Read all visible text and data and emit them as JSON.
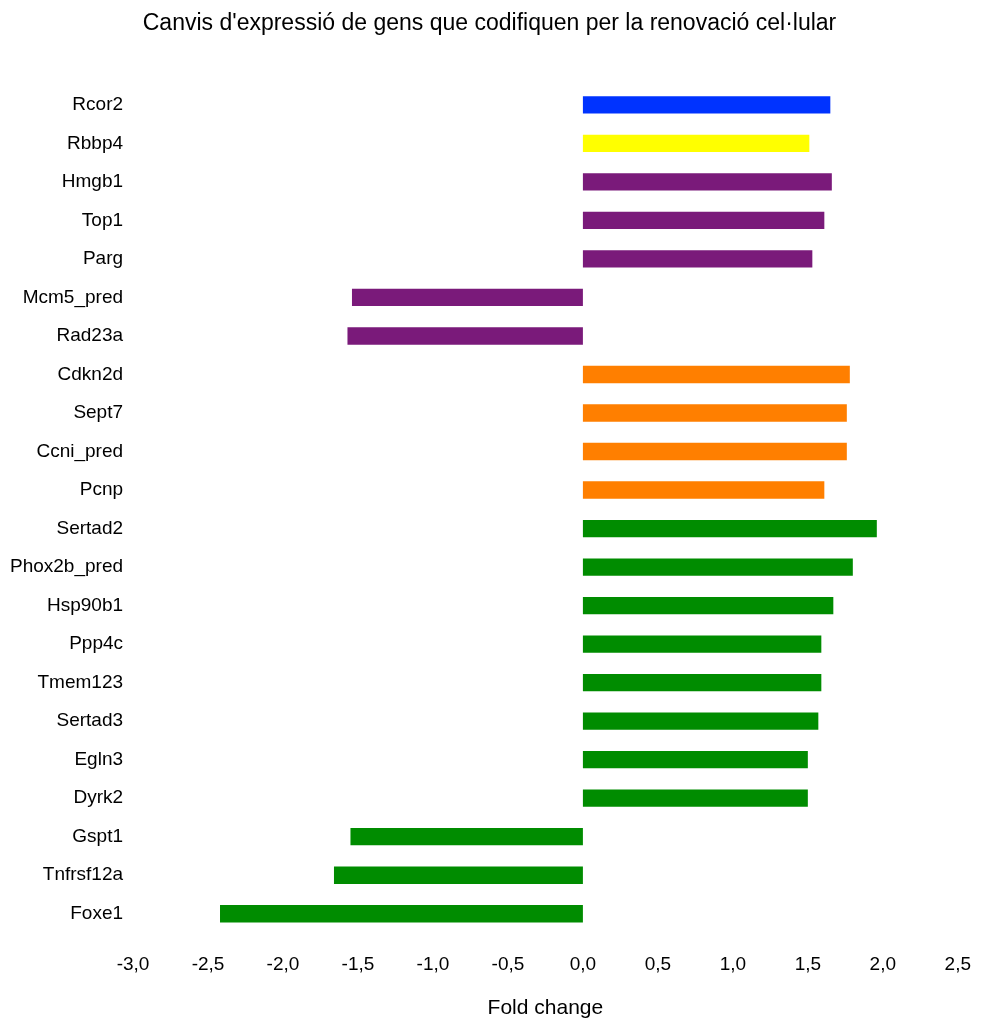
{
  "chart_data": {
    "type": "bar",
    "orientation": "horizontal",
    "title": "Canvis d'expressió de gens que codifiquen per la renovació cel·lular",
    "xlabel": "Fold change",
    "categories": [
      "Rcor2",
      "Rbbp4",
      "Hmgb1",
      "Top1",
      "Parg",
      "Mcm5_pred",
      "Rad23a",
      "Cdkn2d",
      "Sept7",
      "Ccni_pred",
      "Pcnp",
      "Sertad2",
      "Phox2b_pred",
      "Hsp90b1",
      "Ppp4c",
      "Tmem123",
      "Sertad3",
      "Egln3",
      "Dyrk2",
      "Gspt1",
      "Tnfrsf12a",
      "Foxe1"
    ],
    "values": [
      1.65,
      1.51,
      1.66,
      1.61,
      1.53,
      -1.54,
      -1.57,
      1.78,
      1.76,
      1.76,
      1.61,
      1.96,
      1.8,
      1.67,
      1.59,
      1.59,
      1.57,
      1.5,
      1.5,
      -1.55,
      -1.66,
      -2.42
    ],
    "colors": [
      "#0033ff",
      "#ffff00",
      "#7a1a7a",
      "#7a1a7a",
      "#7a1a7a",
      "#7a1a7a",
      "#7a1a7a",
      "#ff7f00",
      "#ff7f00",
      "#ff7f00",
      "#ff7f00",
      "#008c00",
      "#008c00",
      "#008c00",
      "#008c00",
      "#008c00",
      "#008c00",
      "#008c00",
      "#008c00",
      "#008c00",
      "#008c00",
      "#008c00"
    ],
    "xlim": [
      -3,
      2.5
    ],
    "xticks": [
      {
        "value": -3,
        "label": "-3,0"
      },
      {
        "value": -2.5,
        "label": "-2,5"
      },
      {
        "value": -2,
        "label": "-2,0"
      },
      {
        "value": -1.5,
        "label": "-1,5"
      },
      {
        "value": -1,
        "label": "-1,0"
      },
      {
        "value": -0.5,
        "label": "-0,5"
      },
      {
        "value": 0,
        "label": "0,0"
      },
      {
        "value": 0.5,
        "label": "0,5"
      },
      {
        "value": 1,
        "label": "1,0"
      },
      {
        "value": 1.5,
        "label": "1,5"
      },
      {
        "value": 2,
        "label": "2,0"
      },
      {
        "value": 2.5,
        "label": "2,5"
      }
    ],
    "grid": false,
    "legend": false
  }
}
